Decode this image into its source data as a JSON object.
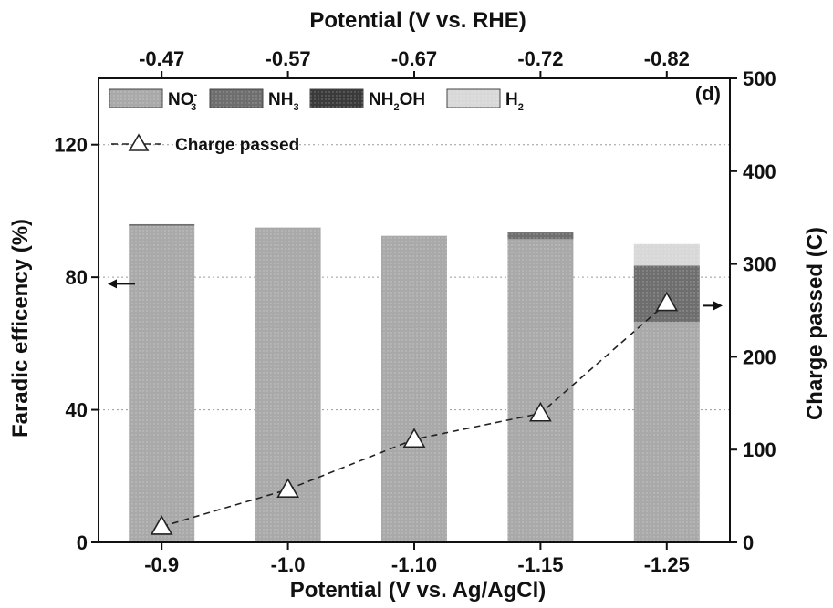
{
  "chart_data": {
    "type": "bar",
    "panel_label": "(d)",
    "xlabel": "Potential (V vs. Ag/AgCl)",
    "top_xlabel": "Potential (V vs. RHE)",
    "ylabel": "Faradic efficency (%)",
    "y2label": "Charge passed (C)",
    "categories": [
      "-0.9",
      "-1.0",
      "-1.10",
      "-1.15",
      "-1.25"
    ],
    "top_categories": [
      "-0.47",
      "-0.57",
      "-0.67",
      "-0.72",
      "-0.82"
    ],
    "ylim": [
      0,
      140
    ],
    "yticks": [
      "0",
      "40",
      "80",
      "120"
    ],
    "y2lim": [
      0,
      500
    ],
    "y2ticks": [
      "0",
      "100",
      "200",
      "300",
      "400",
      "500"
    ],
    "grid": true,
    "legend_position": "top-left",
    "stacked": true,
    "series": [
      {
        "name": "NO",
        "sup": "-",
        "sub": "3",
        "color": "#a9a9a9",
        "values": [
          95.5,
          95.0,
          92.5,
          91.5,
          66.5
        ]
      },
      {
        "name": "NH",
        "sub": "3",
        "color": "#6e6e6e",
        "values": [
          0.5,
          0,
          0,
          2.0,
          17.0
        ]
      },
      {
        "name": "NH",
        "sub": "2",
        "suffix": "OH",
        "color": "#3a3a3a",
        "values": [
          0,
          0,
          0,
          0,
          0
        ]
      },
      {
        "name": "H",
        "sub": "2",
        "color": "#d8d8d8",
        "values": [
          0,
          0,
          0,
          0,
          6.5
        ]
      }
    ],
    "line_series": {
      "name": "Charge passed",
      "axis": "right",
      "values": [
        17,
        57,
        111,
        139,
        258
      ]
    },
    "annotations": {
      "left_arrow_at_y": 78,
      "right_arrow_at_y2": 255
    }
  }
}
